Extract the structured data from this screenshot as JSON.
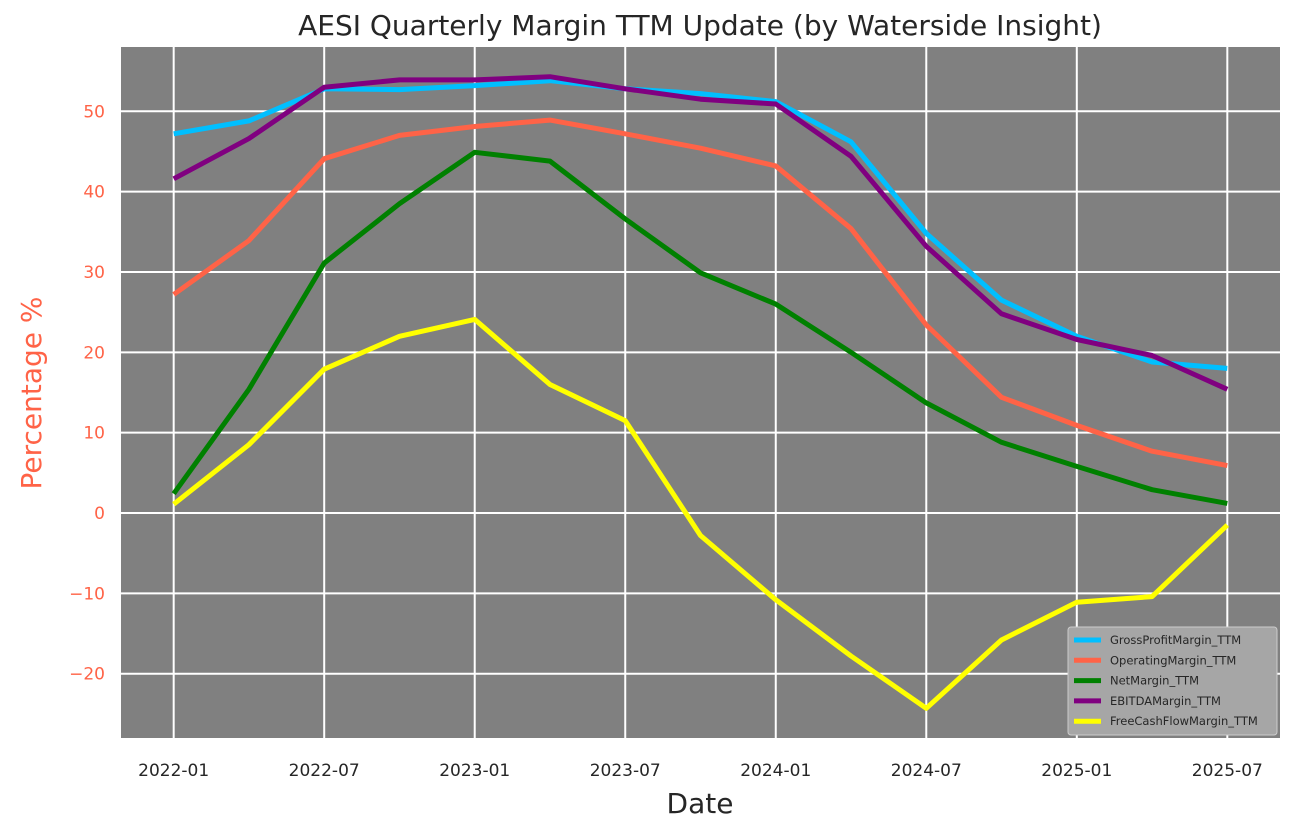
{
  "chart_data": {
    "type": "line",
    "title": "AESI Quarterly Margin TTM Update (by Waterside Insight)",
    "xlabel": "Date",
    "ylabel": "Percentage %",
    "x": [
      "2022-01",
      "2022-04",
      "2022-07",
      "2022-10",
      "2023-01",
      "2023-04",
      "2023-07",
      "2023-10",
      "2024-01",
      "2024-04",
      "2024-07",
      "2024-10",
      "2025-01",
      "2025-04",
      "2025-07"
    ],
    "xticks": [
      "2022-01",
      "2022-07",
      "2023-01",
      "2023-07",
      "2024-01",
      "2024-07",
      "2025-01",
      "2025-07"
    ],
    "ylim": [
      -28,
      58
    ],
    "yticks": [
      -20,
      -10,
      0,
      10,
      20,
      30,
      40,
      50
    ],
    "grid": true,
    "legend_position": "lower-right",
    "colors": {
      "plot_background": "#808080",
      "grid": "#ffffff",
      "ylabel": "#ff6347",
      "ytick": "#ff6347",
      "legend_background": "#a6a6a6"
    },
    "series": [
      {
        "name": "GrossProfitMargin_TTM",
        "color": "#00bfff",
        "values": [
          47.2,
          48.8,
          52.8,
          52.7,
          53.2,
          53.8,
          52.8,
          52.2,
          51.2,
          46.2,
          34.8,
          26.5,
          22.0,
          18.8,
          18.0
        ]
      },
      {
        "name": "OperatingMargin_TTM",
        "color": "#ff6347",
        "values": [
          27.2,
          33.9,
          44.1,
          47.0,
          48.1,
          48.9,
          47.2,
          45.4,
          43.2,
          35.4,
          23.4,
          14.4,
          10.9,
          7.7,
          5.9
        ]
      },
      {
        "name": "NetMargin_TTM",
        "color": "#008000",
        "values": [
          2.4,
          15.4,
          31.1,
          38.5,
          44.9,
          43.8,
          36.6,
          29.9,
          26.0,
          20.0,
          13.7,
          8.8,
          5.8,
          2.9,
          1.2
        ]
      },
      {
        "name": "EBITDAMargin_TTM",
        "color": "#800080",
        "values": [
          41.6,
          46.6,
          53.0,
          53.9,
          53.9,
          54.3,
          52.8,
          51.5,
          50.9,
          44.4,
          33.2,
          24.8,
          21.6,
          19.6,
          15.4
        ]
      },
      {
        "name": "FreeCashFlowMargin_TTM",
        "color": "#ffff00",
        "values": [
          1.1,
          8.5,
          17.9,
          22.0,
          24.1,
          16.0,
          11.5,
          -2.8,
          -10.8,
          -17.8,
          -24.3,
          -15.8,
          -11.1,
          -10.4,
          -1.5
        ]
      }
    ]
  }
}
